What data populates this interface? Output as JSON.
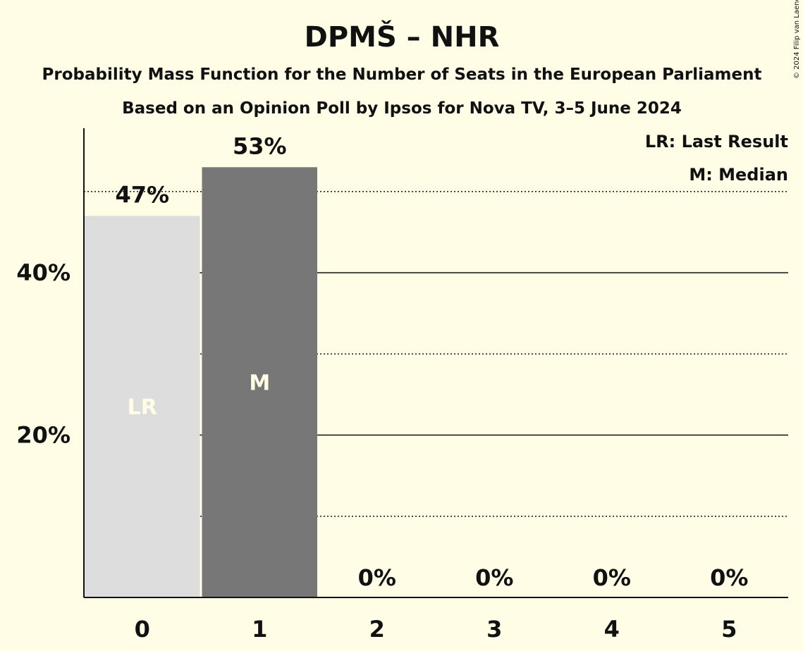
{
  "chart_data": {
    "type": "bar",
    "title": "DPMŠ – NHR",
    "subtitle": "Probability Mass Function for the Number of Seats in the European Parliament",
    "subtitle2": "Based on an Opinion Poll by Ipsos for Nova TV, 3–5 June 2024",
    "categories": [
      "0",
      "1",
      "2",
      "3",
      "4",
      "5"
    ],
    "values": [
      47,
      53,
      0,
      0,
      0,
      0
    ],
    "value_labels": [
      "47%",
      "53%",
      "0%",
      "0%",
      "0%",
      "0%"
    ],
    "bar_marks": [
      "LR",
      "M",
      "",
      "",
      "",
      ""
    ],
    "bar_colors": [
      "#dddddd",
      "#777777",
      "#777777",
      "#777777",
      "#777777",
      "#777777"
    ],
    "ylim": [
      0,
      57.8
    ],
    "yticks": [
      20,
      40
    ],
    "ytick_labels": [
      "20%",
      "40%"
    ],
    "solid_gridlines": [
      20,
      40
    ],
    "dotted_gridlines": [
      10,
      30,
      50
    ],
    "grid": true,
    "legend": {
      "position": "top-right",
      "entries": [
        "LR: Last Result",
        "M: Median"
      ]
    },
    "copyright": "© 2024 Filip van Laenen"
  },
  "colors": {
    "background": "#fffde5",
    "text": "#111111",
    "bar_last_result": "#dddddd",
    "bar_median": "#777777",
    "mark_text": "#fffde5"
  }
}
